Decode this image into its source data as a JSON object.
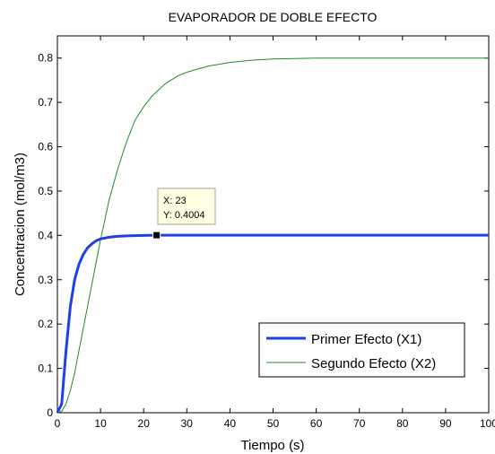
{
  "chart_data": {
    "type": "line",
    "title": "EVAPORADOR DE DOBLE EFECTO",
    "xlabel": "Tiempo (s)",
    "ylabel": "Concentracion (mol/m3)",
    "xlim": [
      0,
      100
    ],
    "ylim": [
      0,
      0.85
    ],
    "xticks": [
      0,
      10,
      20,
      30,
      40,
      50,
      60,
      70,
      80,
      90,
      100
    ],
    "xtick_labels": [
      "0",
      "10",
      "20",
      "30",
      "40",
      "50",
      "60",
      "70",
      "80",
      "90",
      "100"
    ],
    "yticks": [
      0,
      0.1,
      0.2,
      0.3,
      0.4,
      0.5,
      0.6,
      0.7,
      0.8
    ],
    "ytick_labels": [
      "0",
      "0.1",
      "0.2",
      "0.3",
      "0.4",
      "0.5",
      "0.6",
      "0.7",
      "0.8"
    ],
    "grid": false,
    "legend_position": "bottom-right",
    "series": [
      {
        "name": "Primer Efecto (X1)",
        "color": "#1f3fe8",
        "x": [
          0,
          1,
          2,
          3,
          4,
          5,
          6,
          7,
          8,
          9,
          10,
          12,
          14,
          16,
          18,
          20,
          22,
          23,
          25,
          30,
          40,
          50,
          60,
          70,
          80,
          90,
          100
        ],
        "y": [
          0,
          0.02,
          0.14,
          0.24,
          0.3,
          0.335,
          0.357,
          0.372,
          0.381,
          0.388,
          0.392,
          0.396,
          0.398,
          0.399,
          0.3995,
          0.4,
          0.4002,
          0.4004,
          0.4004,
          0.4004,
          0.4004,
          0.4004,
          0.4004,
          0.4004,
          0.4004,
          0.4004,
          0.4004
        ]
      },
      {
        "name": "Segundo Efecto (X2)",
        "color": "#228b22",
        "x": [
          0,
          1,
          2,
          3,
          4,
          5,
          6,
          7,
          8,
          9,
          10,
          12,
          14,
          16,
          18,
          20,
          22,
          25,
          28,
          30,
          35,
          40,
          45,
          50,
          55,
          60,
          65,
          70,
          80,
          90,
          100
        ],
        "y": [
          0,
          0.003,
          0.02,
          0.05,
          0.09,
          0.14,
          0.19,
          0.24,
          0.29,
          0.34,
          0.39,
          0.48,
          0.55,
          0.61,
          0.66,
          0.69,
          0.715,
          0.742,
          0.76,
          0.768,
          0.782,
          0.79,
          0.795,
          0.798,
          0.799,
          0.8,
          0.8,
          0.8,
          0.8,
          0.8,
          0.8
        ]
      }
    ],
    "datatip": {
      "x": 23,
      "y": 0.4004,
      "x_text": "X: 23",
      "y_text": "Y: 0.4004"
    }
  }
}
